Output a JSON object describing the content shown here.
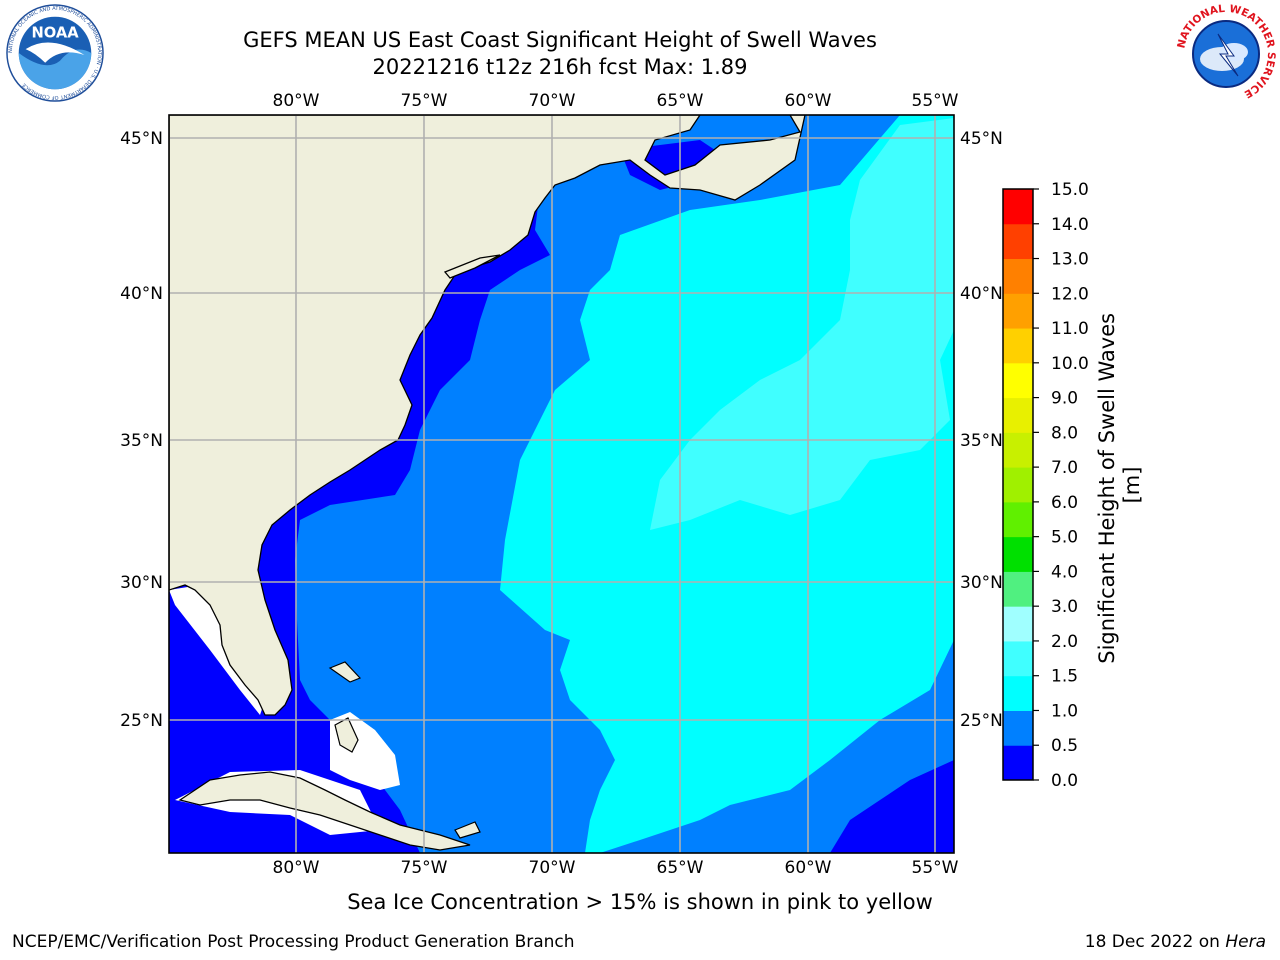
{
  "header": {
    "title_line1": "GEFS MEAN US East Coast Significant Height of Swell Waves",
    "title_line2": "20221216 t12z 216h fcst   Max: 1.89"
  },
  "logos": {
    "left": "noaa-logo",
    "left_text": "NOAA",
    "left_ring_text": "NATIONAL OCEANIC AND ATMOSPHERIC ADMINISTRATION · U.S. DEPARTMENT OF COMMERCE",
    "right": "nws-logo",
    "right_ring_text": "NATIONAL WEATHER SERVICE"
  },
  "chart_data": {
    "type": "heatmap",
    "extent": {
      "lon": [
        -85,
        -54
      ],
      "lat": [
        20.5,
        46
      ]
    },
    "lon_ticks": [
      "80°W",
      "75°W",
      "70°W",
      "65°W",
      "60°W",
      "55°W"
    ],
    "lat_ticks": [
      "45°N",
      "40°N",
      "35°N",
      "30°N",
      "25°N"
    ],
    "colorbar": {
      "label": "Significant Height of Swell Waves [m]",
      "levels": [
        "0.0",
        "0.5",
        "1.0",
        "1.5",
        "2.0",
        "3.0",
        "4.0",
        "5.0",
        "6.0",
        "7.0",
        "8.0",
        "9.0",
        "10.0",
        "11.0",
        "12.0",
        "13.0",
        "14.0",
        "15.0"
      ],
      "colors": [
        "#0000ff",
        "#0080ff",
        "#00ffff",
        "#40ffff",
        "#a0ffff",
        "#50f080",
        "#00e000",
        "#60f000",
        "#a0f000",
        "#c8f000",
        "#e8f000",
        "#ffff00",
        "#ffd000",
        "#ffa000",
        "#ff8000",
        "#ff4000",
        "#ff0000"
      ]
    },
    "land_color": "#efefdc",
    "grid": true
  },
  "footer": {
    "note": "Sea Ice Concentration > 15% is shown in pink to yellow",
    "credit": "NCEP/EMC/Verification Post Processing Product Generation Branch",
    "date_text": "18 Dec 2022 on ",
    "date_machine": "Hera"
  }
}
